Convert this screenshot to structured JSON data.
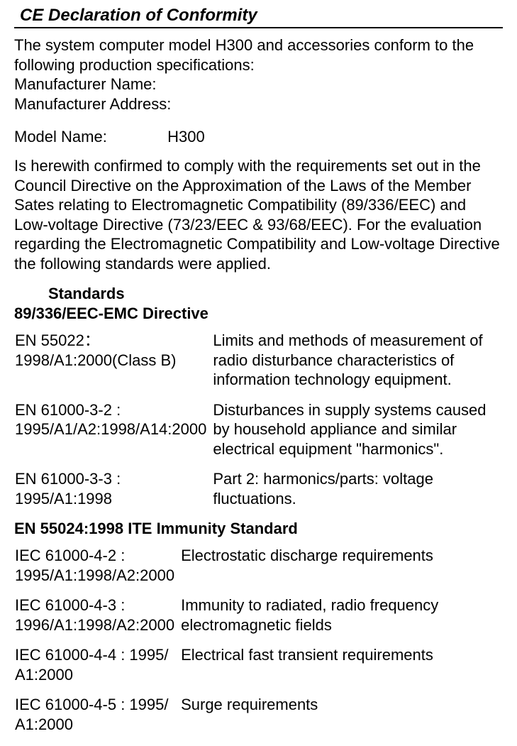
{
  "title": "CE Declaration of Conformity",
  "intro": "The system computer model H300 and accessories conform to the following production specifications:",
  "mfr_name_label": "Manufacturer Name:",
  "mfr_addr_label": "Manufacturer Address:",
  "model_name_label": "Model Name:",
  "model_name_value": "H300",
  "compliance_para": "Is herewith confirmed to comply with the requirements set out in the Council Directive on the Approximation of the Laws of the Member Sates relating to Electromagnetic Compatibility (89/336/EEC) and Low-voltage Directive (73/23/EEC & 93/68/EEC). For the evaluation regarding the Electromagnetic Compatibility and Low-voltage Directive the following standards were applied.",
  "standards_heading": "Standards",
  "directive1": "89/336/EEC-EMC Directive",
  "emc": [
    {
      "code": "EN 55022：1998/A1:2000(Class B)",
      "desc": "Limits and methods of measurement of radio disturbance characteristics of information technology equipment."
    },
    {
      "code": "EN 61000-3-2 : 1995/A1/A2:1998/A14:2000",
      "desc": "Disturbances in supply systems caused by household appliance and similar electrical equipment \"harmonics\"."
    },
    {
      "code": "EN 61000-3-3 : 1995/A1:1998",
      "desc": "Part 2: harmonics/parts: voltage fluctuations."
    }
  ],
  "immunity_heading": "EN 55024:1998  ITE Immunity Standard",
  "immunity": [
    {
      "code": "IEC 61000-4-2 : 1995/A1:1998/A2:2000",
      "desc": "Electrostatic discharge requirements"
    },
    {
      "code": "IEC 61000-4-3 : 1996/A1:1998/A2:2000",
      "desc": "Immunity to radiated, radio frequency electromagnetic fields"
    },
    {
      "code": "IEC 61000-4-4 : 1995/ A1:2000",
      "desc": "Electrical fast transient requirements"
    },
    {
      "code": "IEC 61000-4-5 : 1995/ A1:2000",
      "desc": "Surge requirements"
    }
  ]
}
